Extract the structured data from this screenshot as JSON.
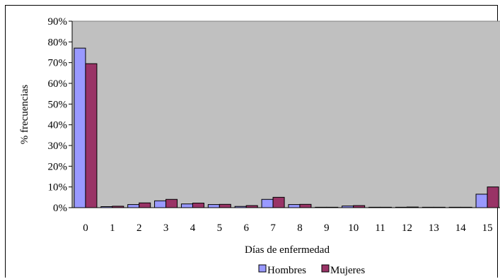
{
  "chart_data": {
    "type": "bar",
    "categories": [
      "0",
      "1",
      "2",
      "3",
      "4",
      "5",
      "6",
      "7",
      "8",
      "9",
      "10",
      "11",
      "12",
      "13",
      "14",
      "15"
    ],
    "series": [
      {
        "name": "Hombres",
        "color": "#9999ff",
        "values": [
          77.0,
          0.5,
          1.5,
          3.3,
          1.8,
          1.5,
          0.6,
          4.0,
          1.5,
          0.2,
          0.8,
          0.1,
          0.1,
          0.2,
          0.1,
          6.5
        ]
      },
      {
        "name": "Mujeres",
        "color": "#993366",
        "values": [
          69.5,
          0.7,
          2.3,
          4.0,
          2.2,
          1.6,
          1.0,
          5.0,
          1.6,
          0.2,
          1.0,
          0.0,
          0.3,
          0.1,
          0.2,
          10.0
        ]
      }
    ],
    "yticks": [
      "0%",
      "10%",
      "20%",
      "30%",
      "40%",
      "50%",
      "60%",
      "70%",
      "80%",
      "90%"
    ],
    "ylim": [
      0,
      90
    ],
    "xlabel": "Días de enfermedad",
    "ylabel": "% frecuencias",
    "plot_background": "#c0c0c0",
    "grid": false,
    "legend_position": "bottom"
  }
}
